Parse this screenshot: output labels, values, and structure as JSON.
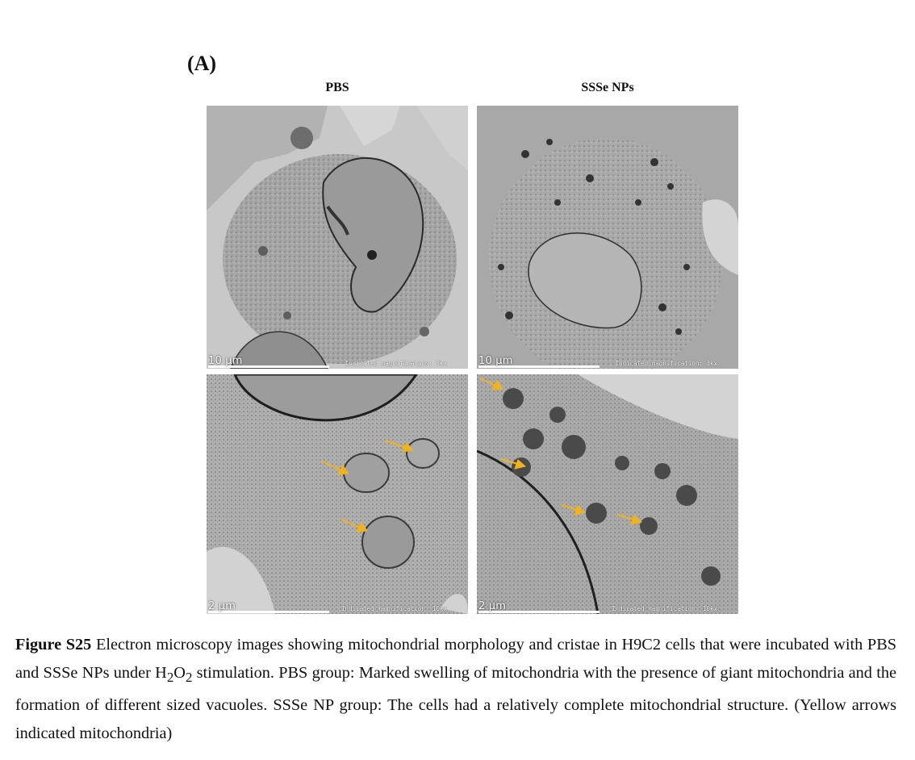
{
  "figure": {
    "panel_letter": "(A)",
    "columns": [
      "PBS",
      "SSSe NPs"
    ],
    "images": [
      {
        "scale": "10 µm",
        "magnification": "Indicated magnification: 3kx"
      },
      {
        "scale": "10 µm",
        "magnification": "Indicated magnification: 3kx"
      },
      {
        "scale": "2 µm",
        "magnification": "Indicated magnification: 10kx"
      },
      {
        "scale": "2 µm",
        "magnification": "Indicated magnification: 10kx"
      }
    ],
    "arrow_color": "#f2b21c"
  },
  "caption": {
    "label": "Figure S25",
    "text_1": " Electron microscopy images showing mitochondrial morphology and cristae in H9C2 cells that were incubated with PBS and SSSe NPs under H",
    "sub_1": "2",
    "text_2": "O",
    "sub_2": "2",
    "text_3": " stimulation. PBS group: Marked swelling of mitochondria with the presence of giant mitochondria and the formation of different sized vacuoles. SSSe NP group: The cells had a relatively complete mitochondrial structure. (Yellow arrows indicated mitochondria)"
  }
}
